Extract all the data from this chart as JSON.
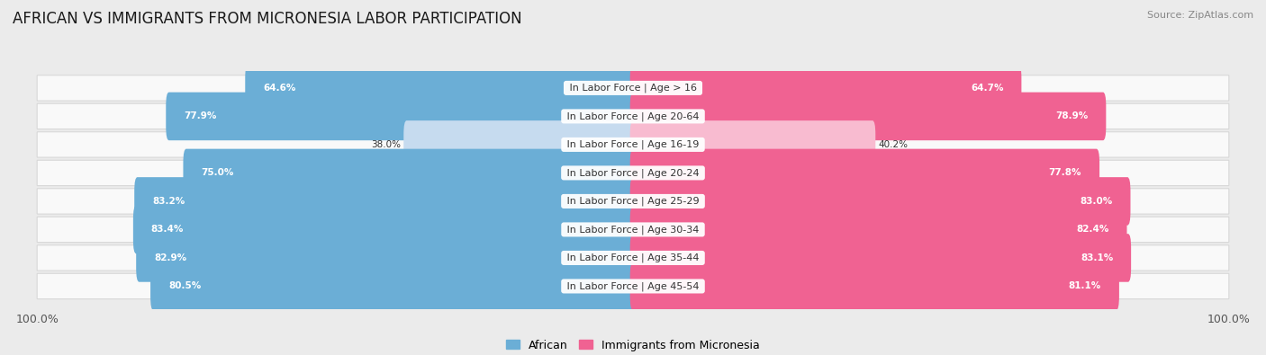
{
  "title": "AFRICAN VS IMMIGRANTS FROM MICRONESIA LABOR PARTICIPATION",
  "source": "Source: ZipAtlas.com",
  "categories": [
    "In Labor Force | Age > 16",
    "In Labor Force | Age 20-64",
    "In Labor Force | Age 16-19",
    "In Labor Force | Age 20-24",
    "In Labor Force | Age 25-29",
    "In Labor Force | Age 30-34",
    "In Labor Force | Age 35-44",
    "In Labor Force | Age 45-54"
  ],
  "african_values": [
    64.6,
    77.9,
    38.0,
    75.0,
    83.2,
    83.4,
    82.9,
    80.5
  ],
  "micronesia_values": [
    64.7,
    78.9,
    40.2,
    77.8,
    83.0,
    82.4,
    83.1,
    81.1
  ],
  "african_color": "#6baed6",
  "micronesia_color": "#f06292",
  "african_light_color": "#c6dbef",
  "micronesia_light_color": "#f8bbd0",
  "background_color": "#ebebeb",
  "row_bg_color": "#f9f9f9",
  "row_border_color": "#d8d8d8",
  "max_value": 100.0,
  "title_fontsize": 12,
  "label_fontsize": 8,
  "value_fontsize": 7.5,
  "legend_fontsize": 9,
  "axis_label_color": "#555555",
  "text_dark": "#333333",
  "source_color": "#888888"
}
